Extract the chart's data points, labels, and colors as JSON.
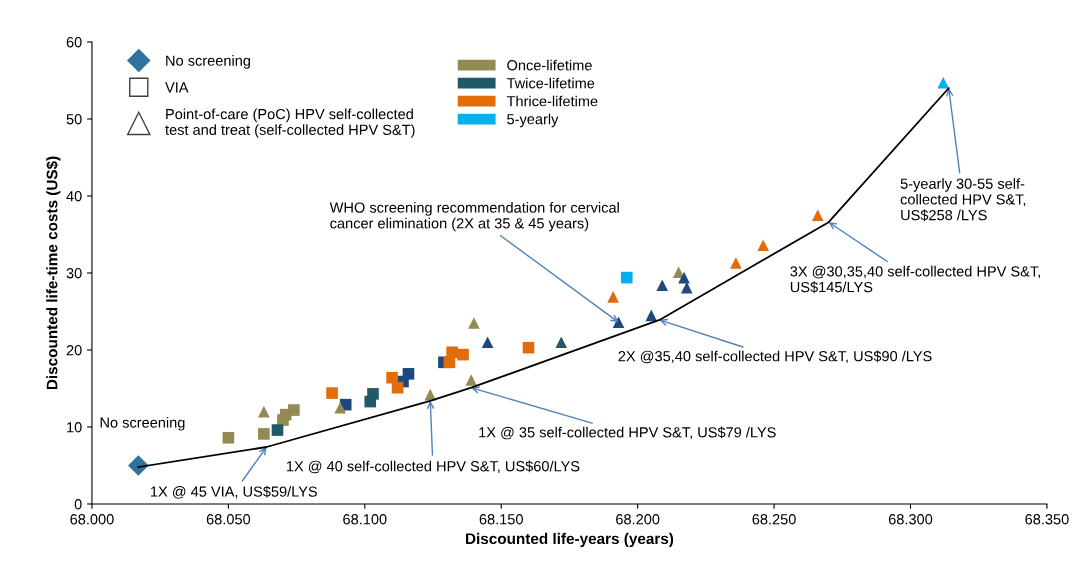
{
  "chart_data": {
    "type": "scatter",
    "xlabel": "Discounted life-years (years)",
    "ylabel": "Discounted life-time costs (US$)",
    "xlim": [
      68.0,
      68.35
    ],
    "ylim": [
      0,
      60
    ],
    "xticks": [
      {
        "value": 68.0,
        "label": "68.000"
      },
      {
        "value": 68.05,
        "label": "68.050"
      },
      {
        "value": 68.1,
        "label": "68.100"
      },
      {
        "value": 68.15,
        "label": "68.150"
      },
      {
        "value": 68.2,
        "label": "68.200"
      },
      {
        "value": 68.25,
        "label": "68.250"
      },
      {
        "value": 68.3,
        "label": "68.300"
      },
      {
        "value": 68.35,
        "label": "68.350"
      }
    ],
    "yticks": [
      0,
      10,
      20,
      30,
      40,
      50,
      60
    ],
    "grid": false,
    "legend": "top left",
    "series": [
      {
        "type": "line",
        "color": "#000000",
        "marker": "none",
        "line_style": "solid",
        "x": [
          68.017,
          68.064,
          68.124,
          68.139,
          68.208,
          68.27,
          68.314
        ],
        "values": [
          4.8,
          7.4,
          13.4,
          15.1,
          23.9,
          36.6,
          54.0
        ]
      },
      {
        "color": "#31719e",
        "marker": "diamond",
        "x": [
          68.017
        ],
        "values": [
          5.0
        ]
      },
      {
        "color": "#948a54",
        "marker": "square",
        "x": [
          68.05,
          68.063,
          68.07,
          68.071,
          68.074
        ],
        "values": [
          8.6,
          9.1,
          10.9,
          11.6,
          12.2
        ]
      },
      {
        "color": "#215968",
        "marker": "square",
        "x": [
          68.068,
          68.102,
          68.103
        ],
        "values": [
          9.6,
          13.3,
          14.3
        ]
      },
      {
        "color": "#1f497d",
        "marker": "square",
        "x": [
          68.093,
          68.114,
          68.116,
          68.129
        ],
        "values": [
          12.9,
          15.9,
          16.9,
          18.4
        ]
      },
      {
        "color": "#e36c0a",
        "marker": "square",
        "x": [
          68.088,
          68.11,
          68.112,
          68.131,
          68.132,
          68.136,
          68.16
        ],
        "values": [
          14.4,
          16.4,
          15.1,
          18.4,
          19.7,
          19.4,
          20.3
        ]
      },
      {
        "color": "#00b0f0",
        "marker": "square",
        "x": [
          68.196
        ],
        "values": [
          29.4
        ]
      },
      {
        "name": "Once-lifetime",
        "color": "#948a54",
        "marker": "triangle",
        "x": [
          68.063,
          68.091,
          68.124,
          68.139,
          68.14,
          68.215
        ],
        "values": [
          12.0,
          12.5,
          14.2,
          16.1,
          23.5,
          30.1
        ]
      },
      {
        "name": "Twice-lifetime",
        "color": "#215968",
        "marker": "triangle",
        "x": [
          68.172
        ],
        "values": [
          21.0
        ]
      },
      {
        "color": "#1f497d",
        "marker": "triangle",
        "x": [
          68.145,
          68.193,
          68.205,
          68.209,
          68.217,
          68.218
        ],
        "values": [
          21.0,
          23.6,
          24.5,
          28.4,
          29.4,
          28.1
        ]
      },
      {
        "name": "Thrice-lifetime",
        "color": "#e36c0a",
        "marker": "triangle",
        "x": [
          68.191,
          68.236,
          68.246,
          68.266
        ],
        "values": [
          26.9,
          31.3,
          33.6,
          37.5
        ]
      },
      {
        "name": "5-yearly",
        "color": "#00b0f0",
        "marker": "triangle",
        "x": [
          68.312
        ],
        "values": [
          54.7
        ]
      }
    ],
    "annotations": [
      {
        "text": "No screening",
        "x": 68.017,
        "y": 5.0
      },
      {
        "text": "1X @ 45 VIA, US$59/LYS",
        "x": 68.064,
        "y": 7.4
      },
      {
        "text": "1X @ 40 self-collected HPV S&T, US$60/LYS",
        "x": 68.124,
        "y": 13.4
      },
      {
        "text": "1X @ 35 self-collected HPV S&T, US$79 /LYS",
        "x": 68.139,
        "y": 15.1
      },
      {
        "text": "WHO screening recommendation for cervical\ncancer elimination (2X at 35 & 45 years)",
        "x": 68.193,
        "y": 23.6
      },
      {
        "text": "2X @35,40 self-collected HPV S&T, US$90 /LYS",
        "x": 68.208,
        "y": 23.9
      },
      {
        "text": "3X @30,35,40 self-collected HPV S&T,\nUS$145/LYS",
        "x": 68.27,
        "y": 36.6
      },
      {
        "text": "5-yearly 30-55 self-\ncollected HPV S&T,\nUS$258 /LYS",
        "x": 68.314,
        "y": 54.0
      },
      "No screening",
      "VIA",
      "Point-of-care (PoC) HPV self-collected\ntest and treat (self-collected HPV S&T)"
    ]
  }
}
